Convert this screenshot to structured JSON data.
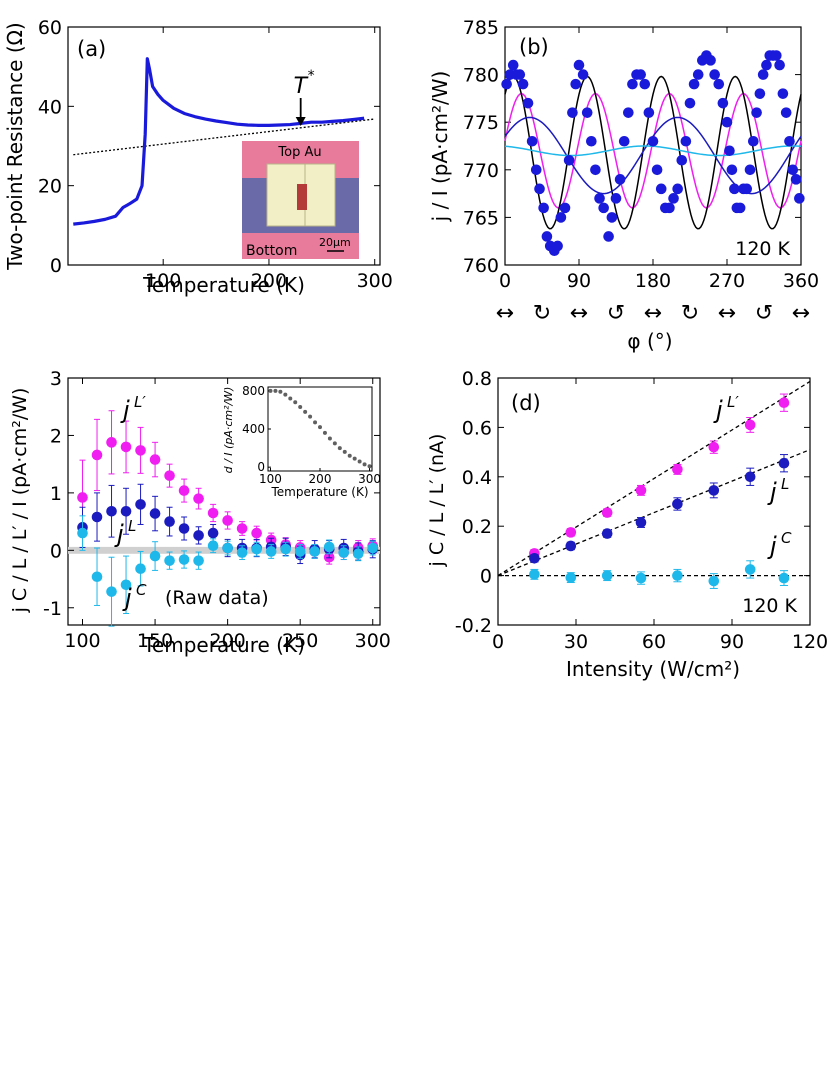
{
  "colors": {
    "blue": "#1a1adb",
    "magenta": "#f01ef0",
    "cyan": "#1fb8ea",
    "black": "#000000",
    "darkblue": "#1b1bbf",
    "grey": "#606060"
  },
  "chart_data": [
    {
      "id": "a",
      "type": "line",
      "label": "(a)",
      "xlabel": "Temperature (K)",
      "ylabel": "Two-point Resistance (Ω)",
      "xlim": [
        10,
        305
      ],
      "ylim": [
        0,
        60
      ],
      "xticks": [
        100,
        200,
        300
      ],
      "yticks": [
        0,
        20,
        40,
        60
      ],
      "annotation": {
        "text": "T",
        "sup": "*",
        "x": 230
      },
      "series": [
        {
          "name": "resistance",
          "x": [
            15,
            25,
            35,
            45,
            55,
            62,
            68,
            75,
            80,
            83,
            85,
            87,
            90,
            95,
            100,
            110,
            120,
            130,
            140,
            150,
            160,
            170,
            180,
            190,
            200,
            210,
            220,
            230,
            240,
            250,
            260,
            270,
            280,
            290
          ],
          "y": [
            10.3,
            10.6,
            11,
            11.5,
            12.3,
            14.5,
            15.4,
            16.6,
            20,
            33,
            52,
            49.5,
            45,
            43,
            41.5,
            39.5,
            38.2,
            37.4,
            36.8,
            36.3,
            35.9,
            35.5,
            35.3,
            35.2,
            35.2,
            35.3,
            35.4,
            35.7,
            36,
            36,
            36.2,
            36.4,
            36.7,
            37
          ]
        },
        {
          "name": "linear background",
          "x": [
            15,
            300
          ],
          "y": [
            27.8,
            36.8
          ]
        }
      ],
      "inset": {
        "top_label": "Top Au",
        "bottom_label": "Bottom",
        "scale_label": "20μm"
      }
    },
    {
      "id": "b",
      "type": "scatter+line",
      "label": "(b)",
      "xlabel": "φ (°)",
      "ylabel": "j / I  (pA·cm²/W)",
      "xlim": [
        0,
        360
      ],
      "ylim": [
        760,
        785
      ],
      "xticks": [
        0,
        90,
        180,
        270,
        360
      ],
      "yticks": [
        760,
        765,
        770,
        775,
        780,
        785
      ],
      "annotation": "120 K",
      "points": {
        "x": [
          2,
          6,
          10,
          14,
          18,
          22,
          28,
          33,
          38,
          42,
          47,
          51,
          55,
          60,
          64,
          68,
          73,
          78,
          82,
          86,
          90,
          95,
          100,
          105,
          110,
          115,
          120,
          126,
          130,
          135,
          140,
          145,
          150,
          155,
          160,
          165,
          170,
          175,
          180,
          185,
          190,
          195,
          200,
          205,
          210,
          215,
          220,
          225,
          230,
          235,
          240,
          245,
          250,
          255,
          260,
          265,
          270,
          273,
          276,
          279,
          282,
          286,
          290,
          294,
          298,
          302,
          306,
          310,
          314,
          318,
          322,
          326,
          330,
          334,
          338,
          342,
          346,
          350,
          354,
          358
        ],
        "y": [
          779,
          780,
          781,
          780,
          780,
          779,
          777,
          773,
          770,
          768,
          766,
          763,
          762,
          761.5,
          762,
          765,
          766,
          771,
          776,
          779,
          781,
          780,
          776,
          773,
          770,
          767,
          766,
          763,
          765,
          767,
          769,
          773,
          776,
          779,
          780,
          780,
          779,
          776,
          773,
          770,
          768,
          766,
          766,
          767,
          768,
          771,
          773,
          777,
          779,
          780,
          781.5,
          782,
          781.5,
          780,
          779,
          777,
          775,
          772,
          770,
          768,
          766,
          766,
          768,
          768,
          770,
          773,
          776,
          778,
          780,
          781,
          782,
          782,
          782,
          781,
          778,
          776,
          773,
          770,
          769,
          767
        ]
      },
      "fits": [
        {
          "name": "magenta",
          "offset": 772,
          "amp2": 0,
          "amp4": 6,
          "phase4": -20
        },
        {
          "name": "black",
          "offset": 771.8,
          "amp2": 0,
          "amp4": 8,
          "phase4": -10
        },
        {
          "name": "darkblue",
          "offset": 771.5,
          "amp2": 4,
          "amp4": 0,
          "phase2": -30
        },
        {
          "name": "cyan",
          "offset": 772,
          "amp2": 0.5,
          "amp4": 0,
          "phase2": 10
        }
      ],
      "polarization_symbols": [
        "↔",
        "↻",
        "↔",
        "↺",
        "↔",
        "↻",
        "↔",
        "↺",
        "↔"
      ]
    },
    {
      "id": "c",
      "type": "scatter",
      "label": "(c)",
      "xlabel": "Temperature (K)",
      "ylabel": "j C / L / L′ / I  (pA·cm²/W)",
      "xlim": [
        90,
        305
      ],
      "ylim": [
        -1.3,
        3
      ],
      "xticks": [
        100,
        150,
        200,
        250,
        300
      ],
      "yticks": [
        -1,
        0,
        1,
        2,
        3
      ],
      "series": [
        {
          "name": "jL'",
          "label": "L′",
          "color": "magenta",
          "x": [
            100,
            110,
            120,
            130,
            140,
            150,
            160,
            170,
            180,
            190,
            200,
            210,
            220,
            230,
            240,
            250,
            260,
            270,
            280,
            290,
            300
          ],
          "y": [
            0.92,
            1.66,
            1.88,
            1.8,
            1.74,
            1.58,
            1.3,
            1.04,
            0.9,
            0.65,
            0.52,
            0.38,
            0.3,
            0.18,
            0.1,
            0.05,
            -0.02,
            -0.12,
            -0.04,
            0.05,
            0.08
          ],
          "err": [
            0.65,
            0.62,
            0.55,
            0.45,
            0.4,
            0.3,
            0.2,
            0.2,
            0.18,
            0.15,
            0.15,
            0.12,
            0.12,
            0.12,
            0.12,
            0.12,
            0.12,
            0.12,
            0.12,
            0.12,
            0.12
          ]
        },
        {
          "name": "jL",
          "label": "L",
          "color": "darkblue",
          "x": [
            100,
            110,
            120,
            130,
            140,
            150,
            160,
            170,
            180,
            190,
            200,
            210,
            220,
            230,
            240,
            250,
            260,
            270,
            280,
            290,
            300
          ],
          "y": [
            0.4,
            0.58,
            0.68,
            0.68,
            0.8,
            0.64,
            0.5,
            0.38,
            0.26,
            0.3,
            0.04,
            0.04,
            0.04,
            0.06,
            0.06,
            -0.08,
            0.02,
            0.02,
            0.04,
            -0.02,
            0.02
          ],
          "err": [
            0.35,
            0.42,
            0.45,
            0.4,
            0.35,
            0.3,
            0.25,
            0.2,
            0.15,
            0.15,
            0.15,
            0.15,
            0.15,
            0.15,
            0.15,
            0.15,
            0.15,
            0.15,
            0.15,
            0.15,
            0.15
          ]
        },
        {
          "name": "jC",
          "label": "C",
          "color": "cyan",
          "x": [
            100,
            110,
            120,
            130,
            140,
            150,
            160,
            170,
            180,
            190,
            200,
            210,
            220,
            230,
            240,
            250,
            260,
            270,
            280,
            290,
            300
          ],
          "y": [
            0.3,
            -0.46,
            -0.72,
            -0.6,
            -0.32,
            -0.1,
            -0.18,
            -0.16,
            -0.18,
            0.08,
            0.04,
            -0.04,
            0.02,
            -0.02,
            0.02,
            -0.02,
            -0.02,
            0.06,
            -0.04,
            -0.06,
            0.04
          ],
          "err": [
            0.3,
            0.5,
            0.6,
            0.5,
            0.3,
            0.25,
            0.15,
            0.15,
            0.15,
            0.12,
            0.12,
            0.12,
            0.12,
            0.12,
            0.12,
            0.12,
            0.12,
            0.12,
            0.12,
            0.12,
            0.12
          ]
        }
      ],
      "annotation": "(Raw data)",
      "inset": {
        "type": "scatter",
        "xlabel": "Temperature (K)",
        "ylabel": "d / I  (pA·cm²/W)",
        "xlim": [
          95,
          305
        ],
        "ylim": [
          -40,
          840
        ],
        "xticks": [
          100,
          200,
          300
        ],
        "yticks": [
          0,
          400,
          800
        ],
        "x": [
          100,
          110,
          120,
          130,
          140,
          150,
          160,
          170,
          180,
          190,
          200,
          210,
          220,
          230,
          240,
          250,
          260,
          270,
          280,
          290,
          300
        ],
        "y": [
          800,
          800,
          790,
          760,
          720,
          680,
          630,
          580,
          530,
          470,
          420,
          360,
          300,
          250,
          200,
          160,
          120,
          90,
          60,
          30,
          10
        ]
      }
    },
    {
      "id": "d",
      "type": "scatter",
      "label": "(d)",
      "xlabel": "Intensity (W/cm²)",
      "ylabel": "j C / L / L′ (nA)",
      "xlim": [
        0,
        120
      ],
      "ylim": [
        -0.2,
        0.8
      ],
      "xticks": [
        0,
        30,
        60,
        90,
        120
      ],
      "yticks": [
        -0.2,
        0,
        0.2,
        0.4,
        0.6,
        0.8
      ],
      "annotation": "120 K",
      "series": [
        {
          "name": "jL'",
          "label": "L′",
          "color": "magenta",
          "slope": 0.00655,
          "x": [
            14,
            28,
            42,
            55,
            69,
            83,
            97,
            110
          ],
          "y": [
            0.09,
            0.175,
            0.255,
            0.345,
            0.43,
            0.52,
            0.61,
            0.7
          ],
          "err": [
            0.015,
            0.015,
            0.015,
            0.02,
            0.02,
            0.025,
            0.03,
            0.035
          ]
        },
        {
          "name": "jL",
          "label": "L",
          "color": "darkblue",
          "slope": 0.00425,
          "x": [
            14,
            28,
            42,
            55,
            69,
            83,
            97,
            110
          ],
          "y": [
            0.07,
            0.12,
            0.17,
            0.215,
            0.29,
            0.345,
            0.4,
            0.455
          ],
          "err": [
            0.015,
            0.015,
            0.015,
            0.02,
            0.025,
            0.03,
            0.035,
            0.035
          ]
        },
        {
          "name": "jC",
          "label": "C",
          "color": "cyan",
          "slope": 0,
          "x": [
            14,
            28,
            42,
            55,
            69,
            83,
            97,
            110
          ],
          "y": [
            0.005,
            -0.008,
            0,
            -0.01,
            0,
            -0.022,
            0.025,
            -0.01
          ],
          "err": [
            0.02,
            0.02,
            0.02,
            0.025,
            0.025,
            0.03,
            0.035,
            0.03
          ]
        }
      ]
    }
  ]
}
